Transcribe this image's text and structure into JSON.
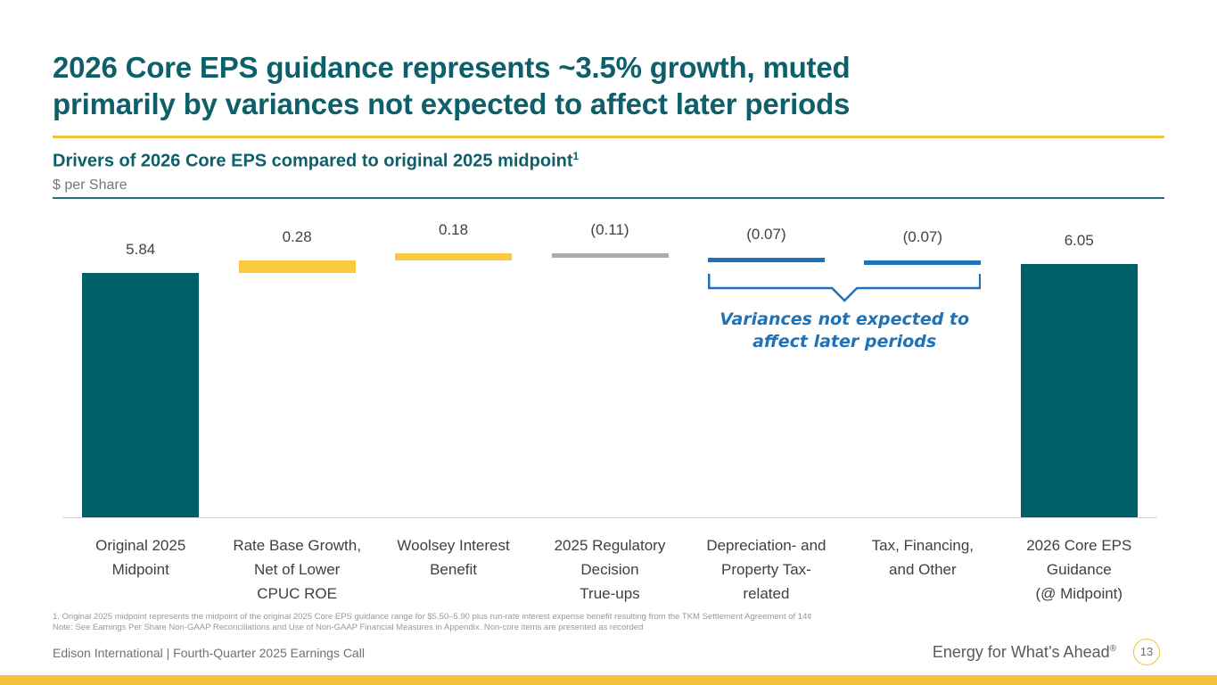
{
  "slide": {
    "title_lines": [
      "2026 Core EPS guidance represents ~3.5% growth, muted",
      "primarily by variances not expected to affect later periods"
    ],
    "chart_heading": "Drivers of 2026 Core EPS compared to original 2025 midpoint",
    "chart_heading_superscript": "1",
    "units_label": "$ per Share"
  },
  "chart_data": {
    "type": "bar",
    "subtype": "waterfall",
    "title": "Drivers of 2026 Core EPS compared to original 2025 midpoint",
    "ylabel": "$ per Share",
    "ylim": [
      0,
      6.5
    ],
    "grid": false,
    "legend": false,
    "categories": [
      "Original 2025\nMidpoint",
      "Rate Base Growth,\nNet of Lower\nCPUC ROE",
      "Woolsey Interest\nBenefit",
      "2025 Regulatory\nDecision\nTrue-ups",
      "Depreciation- and\nProperty Tax-\nrelated",
      "Tax, Financing,\nand Other",
      "2026 Core EPS\nGuidance\n(@ Midpoint)"
    ],
    "bars": [
      {
        "category": "Original 2025\nMidpoint",
        "value": 5.84,
        "label": "5.84",
        "kind": "total",
        "color": "#006069"
      },
      {
        "category": "Rate Base Growth,\nNet of Lower\nCPUC ROE",
        "value": 0.28,
        "label": "0.28",
        "kind": "increase",
        "color": "#FAC93F"
      },
      {
        "category": "Woolsey Interest\nBenefit",
        "value": 0.18,
        "label": "0.18",
        "kind": "increase",
        "color": "#FAC93F"
      },
      {
        "category": "2025 Regulatory\nDecision\nTrue-ups",
        "value": -0.11,
        "label": "(0.11)",
        "kind": "decrease",
        "color": "#ABACAE"
      },
      {
        "category": "Depreciation- and\nProperty Tax-\nrelated",
        "value": -0.07,
        "label": "(0.07)",
        "kind": "decrease",
        "color": "#1F72B8"
      },
      {
        "category": "Tax, Financing,\nand Other",
        "value": -0.07,
        "label": "(0.07)",
        "kind": "decrease",
        "color": "#1F72B8"
      },
      {
        "category": "2026 Core EPS\nGuidance\n(@ Midpoint)",
        "value": 6.05,
        "label": "6.05",
        "kind": "total",
        "color": "#006069"
      }
    ],
    "annotation": {
      "text": "Variances not expected to\naffect later periods",
      "color": "#1F72B8",
      "bracket_bar_indexes": [
        4,
        5
      ]
    }
  },
  "footnotes": {
    "line1": "1.   Original 2025 midpoint represents the midpoint of the original 2025 Core EPS guidance range for $5.50–5.90 plus run-rate interest expense benefit resulting from the TKM Settlement Agreement of 14¢",
    "line2": "Note: See Earnings Per Share Non-GAAP Reconciliations and Use of Non-GAAP Financial Measures in Appendix. Non-core items are presented as recorded"
  },
  "footer": {
    "left_text": "Edison International |  Fourth-Quarter 2025 Earnings Call",
    "tagline": "Energy for What’s Ahead",
    "tagline_mark": "®",
    "page_number": "13"
  },
  "colors": {
    "title_teal": "#0d5f69",
    "bar_teal": "#006069",
    "bar_yellow": "#FAC93F",
    "bar_gray": "#ABACAE",
    "bar_blue": "#1F72B8",
    "accent_yellow": "#F2C33C",
    "bottom_bar_yellow": "#F5C33B"
  }
}
